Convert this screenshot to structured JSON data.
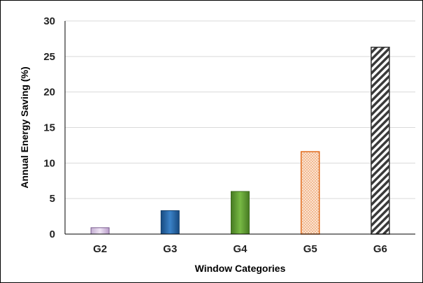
{
  "chart_data": {
    "type": "bar",
    "title": "",
    "xlabel": "Window Categories",
    "ylabel": "Annual Energy Saving (%)",
    "categories": [
      "G2",
      "G3",
      "G4",
      "G5",
      "G6"
    ],
    "values": [
      0.9,
      3.3,
      6.0,
      11.6,
      26.3
    ],
    "ylim": [
      0,
      30
    ],
    "yticks": [
      0,
      5,
      10,
      15,
      20,
      25,
      30
    ],
    "grid": true,
    "legend": "none",
    "bar_styles": [
      {
        "fill": "#d9c6e3",
        "stroke": "#7a5c8e",
        "pattern": "gradient"
      },
      {
        "fill": "#1f5fa0",
        "stroke": "#123d6b",
        "pattern": "gradient"
      },
      {
        "fill": "#5a9a2e",
        "stroke": "#3c6b1c",
        "pattern": "gradient"
      },
      {
        "fill": "#f6c9a6",
        "stroke": "#e06a1b",
        "pattern": "dots"
      },
      {
        "fill": "#ffffff",
        "stroke": "#333333",
        "pattern": "diagonal-stripes"
      }
    ],
    "grid_color": "#d9d9d9"
  }
}
